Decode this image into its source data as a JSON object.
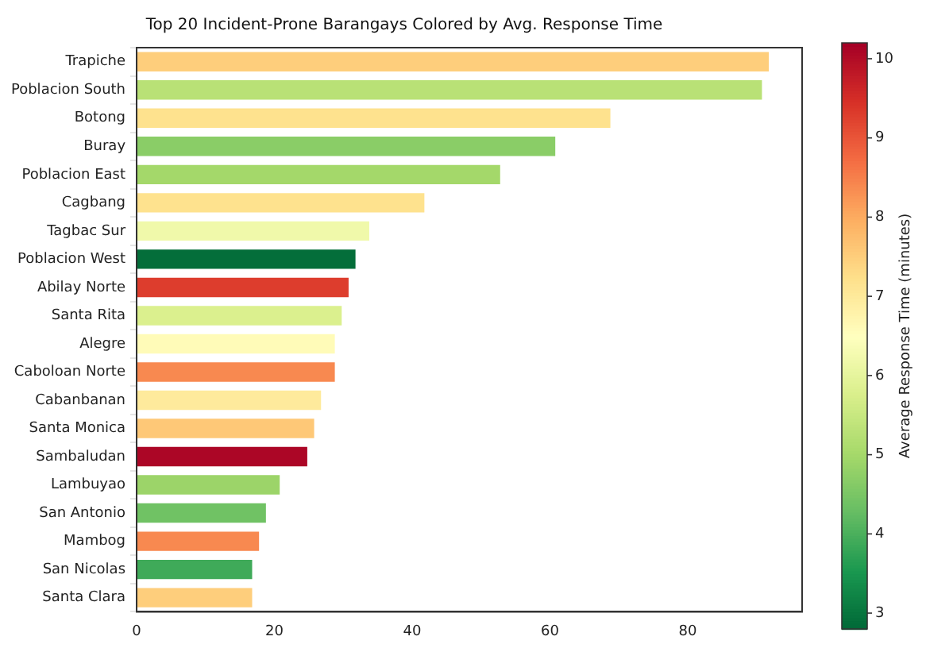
{
  "chart_data": {
    "type": "bar",
    "orientation": "horizontal",
    "title": "Top 20 Incident-Prone Barangays Colored by Avg. Response Time",
    "categories": [
      "Trapiche",
      "Poblacion South",
      "Botong",
      "Buray",
      "Poblacion East",
      "Cagbang",
      "Tagbac Sur",
      "Poblacion West",
      "Abilay Norte",
      "Santa Rita",
      "Alegre",
      "Caboloan Norte",
      "Cabanbanan",
      "Santa Monica",
      "Sambaludan",
      "Lambuyao",
      "San Antonio",
      "Mambog",
      "San Nicolas",
      "Santa Clara"
    ],
    "values": [
      92,
      91,
      69,
      61,
      53,
      42,
      34,
      32,
      31,
      30,
      29,
      29,
      27,
      26,
      25,
      21,
      19,
      18,
      17,
      17
    ],
    "cvalues": [
      7.5,
      5.3,
      7.2,
      4.7,
      5.0,
      7.2,
      6.2,
      2.9,
      9.3,
      5.8,
      6.6,
      8.4,
      7.0,
      7.6,
      10.1,
      4.9,
      4.4,
      8.4,
      3.9,
      7.5
    ],
    "xlim": [
      0,
      96.6
    ],
    "xticks": [
      0,
      20,
      40,
      60,
      80
    ],
    "clabel": "Average Response Time (minutes)",
    "clim": [
      2.8,
      10.2
    ],
    "cticks": [
      3,
      4,
      5,
      6,
      7,
      8,
      9,
      10
    ],
    "grid": false,
    "legend": false
  }
}
